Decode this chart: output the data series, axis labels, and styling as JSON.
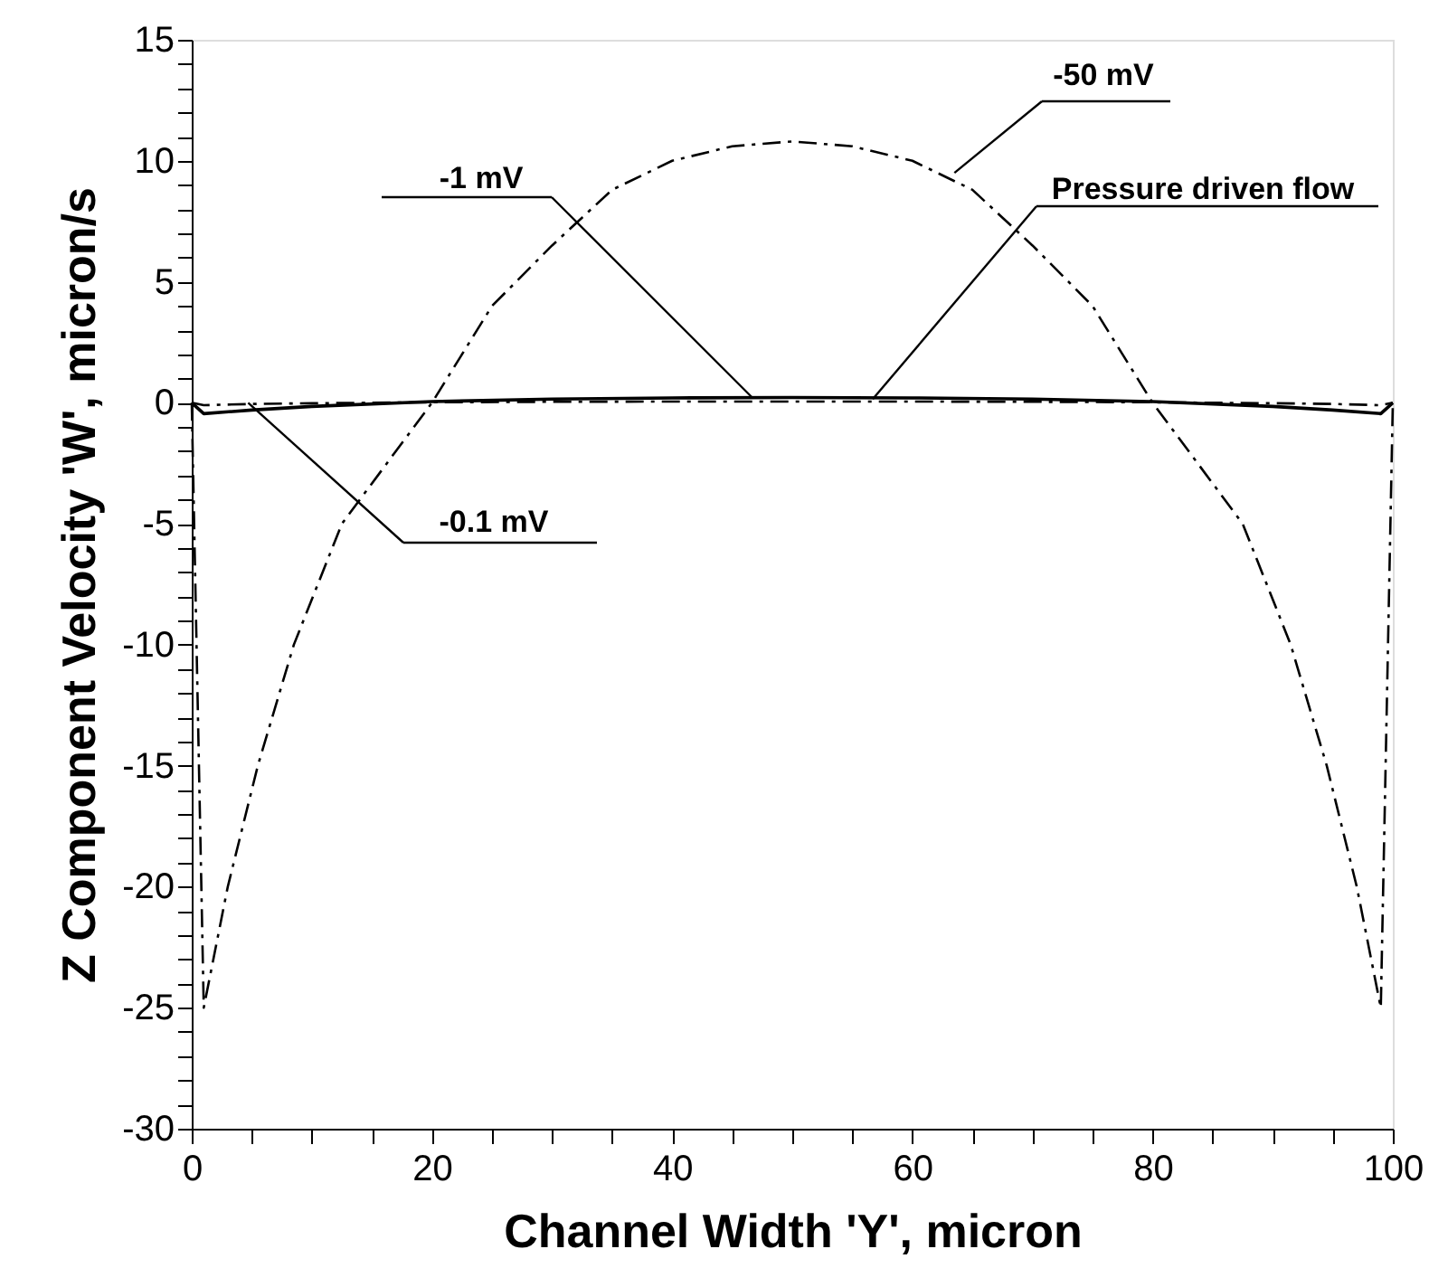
{
  "chart_data": {
    "type": "line",
    "xlabel": "Channel Width 'Y', micron",
    "ylabel": "Z Component Velocity 'W', micron/s",
    "xlim": [
      0,
      100
    ],
    "ylim": [
      -30,
      15
    ],
    "xticks": [
      0,
      {
        "value": 5,
        "label": null
      },
      {
        "value": 10,
        "label": null
      },
      {
        "value": 15,
        "label": null
      },
      20,
      {
        "value": 25,
        "label": null
      },
      {
        "value": 30,
        "label": null
      },
      {
        "value": 35,
        "label": null
      },
      40,
      {
        "value": 45,
        "label": null
      },
      {
        "value": 50,
        "label": null
      },
      {
        "value": 55,
        "label": null
      },
      60,
      {
        "value": 65,
        "label": null
      },
      {
        "value": 70,
        "label": null
      },
      {
        "value": 75,
        "label": null
      },
      80,
      {
        "value": 85,
        "label": null
      },
      {
        "value": 90,
        "label": null
      },
      {
        "value": 95,
        "label": null
      },
      100
    ],
    "yticks": [
      -30,
      {
        "value": -29,
        "label": null
      },
      {
        "value": -28,
        "label": null
      },
      {
        "value": -27,
        "label": null
      },
      {
        "value": -26,
        "label": null
      },
      -25,
      {
        "value": -24,
        "label": null
      },
      {
        "value": -23,
        "label": null
      },
      {
        "value": -22,
        "label": null
      },
      {
        "value": -21,
        "label": null
      },
      -20,
      {
        "value": -19,
        "label": null
      },
      {
        "value": -18,
        "label": null
      },
      {
        "value": -17,
        "label": null
      },
      {
        "value": -16,
        "label": null
      },
      -15,
      {
        "value": -14,
        "label": null
      },
      {
        "value": -13,
        "label": null
      },
      {
        "value": -12,
        "label": null
      },
      {
        "value": -11,
        "label": null
      },
      -10,
      {
        "value": -9,
        "label": null
      },
      {
        "value": -8,
        "label": null
      },
      {
        "value": -7,
        "label": null
      },
      {
        "value": -6,
        "label": null
      },
      -5,
      {
        "value": -4,
        "label": null
      },
      {
        "value": -3,
        "label": null
      },
      {
        "value": -2,
        "label": null
      },
      {
        "value": -1,
        "label": null
      },
      0,
      {
        "value": 1,
        "label": null
      },
      {
        "value": 2,
        "label": null
      },
      {
        "value": 3,
        "label": null
      },
      {
        "value": 4,
        "label": null
      },
      5,
      {
        "value": 6,
        "label": null
      },
      {
        "value": 7,
        "label": null
      },
      {
        "value": 8,
        "label": null
      },
      {
        "value": 9,
        "label": null
      },
      10,
      {
        "value": 11,
        "label": null
      },
      {
        "value": 12,
        "label": null
      },
      {
        "value": 13,
        "label": null
      },
      {
        "value": 14,
        "label": null
      },
      15
    ],
    "grid": false,
    "series": [
      {
        "color": "#000000",
        "line_style": "dashed",
        "x": [
          0,
          1,
          3,
          5.5,
          8.5,
          12.5,
          20,
          25,
          30,
          35,
          40,
          45,
          50,
          55,
          60,
          65,
          70,
          75,
          80,
          87.5,
          91.5,
          94.5,
          97,
          99,
          100
        ],
        "values": [
          0,
          -25,
          -20,
          -15,
          -10,
          -5,
          0,
          4,
          6.5,
          8.8,
          10,
          10.6,
          10.8,
          10.6,
          10,
          8.8,
          6.5,
          4,
          0,
          -5,
          -10,
          -15,
          -20,
          -25,
          0
        ]
      },
      {
        "color": "#000000",
        "line_style": "solid",
        "x": [
          0,
          1,
          5,
          10,
          20,
          30,
          40,
          50,
          60,
          70,
          80,
          90,
          95,
          99,
          100
        ],
        "values": [
          0,
          -0.45,
          -0.3,
          -0.15,
          0.05,
          0.15,
          0.2,
          0.22,
          0.2,
          0.15,
          0.05,
          -0.15,
          -0.3,
          -0.45,
          0
        ]
      },
      {
        "color": "#000000",
        "line_style": "dashed",
        "x": [
          0,
          1,
          5,
          10,
          20,
          30,
          40,
          50,
          60,
          70,
          80,
          90,
          95,
          99,
          100
        ],
        "values": [
          0,
          -0.1,
          -0.05,
          -0.02,
          0.02,
          0.04,
          0.05,
          0.05,
          0.05,
          0.04,
          0.02,
          -0.02,
          -0.05,
          -0.1,
          0
        ]
      }
    ],
    "annotations": [
      {
        "text": "-50 mV",
        "x": 63.5,
        "y": 9.5
      },
      {
        "text": "-1 mV",
        "x": 46.7,
        "y": 0.2
      },
      {
        "text": "Pressure driven flow",
        "x": 56.7,
        "y": 0.15
      },
      {
        "text": "-0.1 mV",
        "x": 4.7,
        "y": 0
      }
    ]
  }
}
